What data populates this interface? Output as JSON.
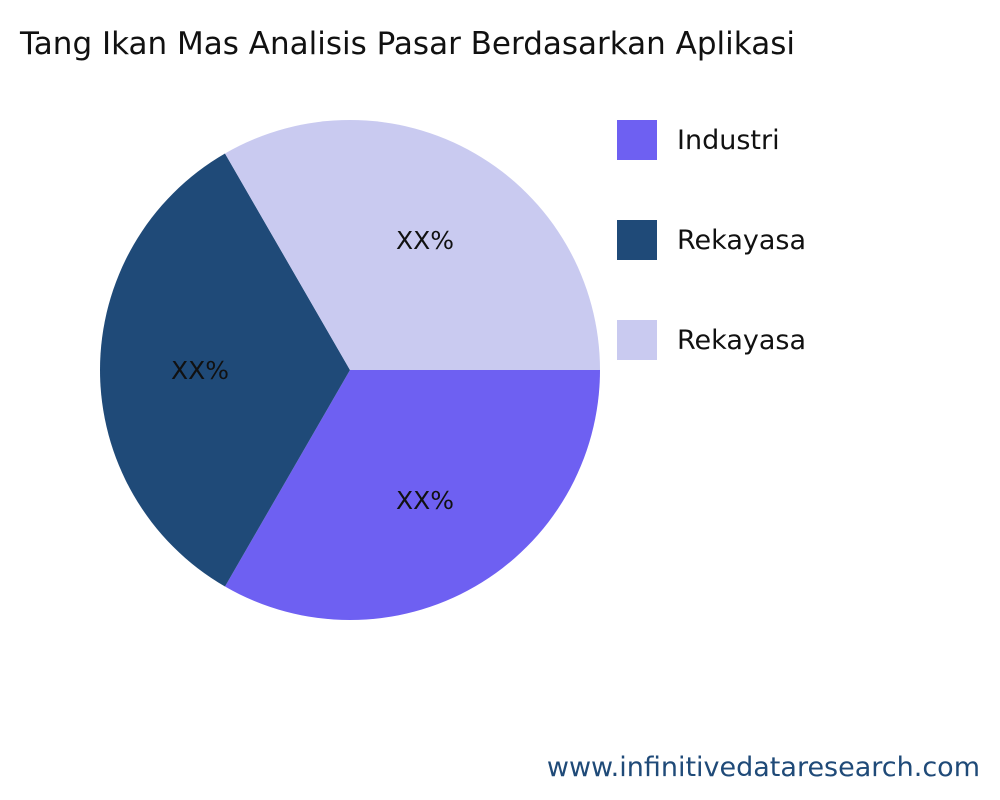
{
  "chart_data": {
    "type": "pie",
    "title": "Tang Ikan Mas Analisis Pasar Berdasarkan Aplikasi",
    "categories": [
      "Industri",
      "Rekayasa",
      "Rekayasa"
    ],
    "values": [
      33.33,
      33.33,
      33.33
    ],
    "data_labels": [
      "XX%",
      "XX%",
      "XX%"
    ],
    "colors": [
      "#6e60f2",
      "#1f4a78",
      "#c9caf0"
    ],
    "legend_position": "right"
  },
  "watermark": "www.infinitivedataresearch.com"
}
